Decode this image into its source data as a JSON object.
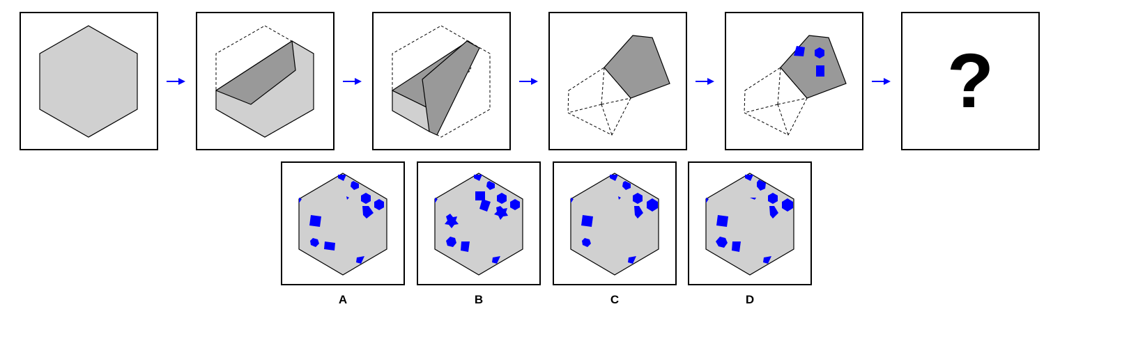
{
  "sequence": {
    "question_mark": "?"
  },
  "options": [
    {
      "label": "A"
    },
    {
      "label": "B"
    },
    {
      "label": "C"
    },
    {
      "label": "D"
    }
  ],
  "colors": {
    "paper": "#d0d0d0",
    "fold_shade": "#999999",
    "hole_blue": "#0000ff",
    "arrow_blue": "#0000ff",
    "outline": "#000000"
  }
}
